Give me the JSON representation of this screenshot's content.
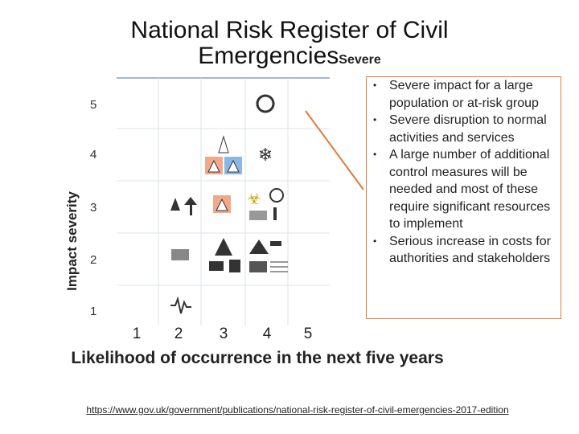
{
  "header": {
    "title": "National Risk Register of Civil Emergencies",
    "highlight": "Severe"
  },
  "matrix": {
    "y_axis_label": "Impact severity",
    "x_axis_label": "Likelihood of occurrence in the next five years",
    "y_ticks": [
      "5",
      "4",
      "3",
      "2",
      "1"
    ],
    "x_ticks": [
      "1",
      "2",
      "3",
      "4",
      "5"
    ]
  },
  "severe_box": {
    "bullets": [
      "Severe impact for a large population or at-risk group",
      "Severe disruption to normal activities and services",
      "A large number of additional control measures will be needed and most of these require significant resources to implement",
      "Serious increase in costs for authorities and stakeholders"
    ]
  },
  "footer": {
    "url": "https://www.gov.uk/government/publications/national-risk-register-of-civil-emergencies-2017-edition"
  }
}
